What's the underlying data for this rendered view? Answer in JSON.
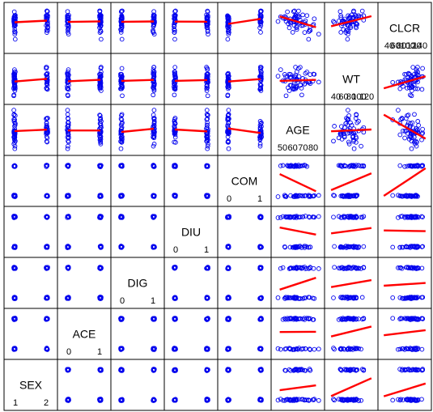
{
  "chart_data": {
    "type": "scatter",
    "subtype": "scatterplot-matrix",
    "variables": [
      "SEX",
      "ACE",
      "DIG",
      "DIU",
      "COM",
      "AGE",
      "WT",
      "CLCR"
    ],
    "categorical_levels": {
      "SEX": [
        1,
        2
      ],
      "ACE": [
        0,
        1
      ],
      "DIG": [
        0,
        1
      ],
      "DIU": [
        0,
        1
      ],
      "COM": [
        0,
        1
      ]
    },
    "continuous_ranges": {
      "AGE": [
        40,
        90
      ],
      "WT": [
        40,
        130
      ],
      "CLCR": [
        20,
        150
      ]
    },
    "diagonal_tick_labels": {
      "SEX": [
        "1",
        "2"
      ],
      "ACE": [
        "0",
        "1"
      ],
      "DIG": [
        "0",
        "1"
      ],
      "DIU": [
        "0",
        "1"
      ],
      "COM": [
        "0",
        "1"
      ],
      "AGE": [
        "50",
        "60",
        "70",
        "80"
      ],
      "WT": [
        "40",
        "60",
        "80",
        "100",
        "120"
      ],
      "CLCR": [
        "40",
        "60",
        "80",
        "100",
        "120",
        "140"
      ]
    },
    "point_color": "#0000ee",
    "smoother_color": "#ff0000",
    "grid": false,
    "legend": "none"
  }
}
